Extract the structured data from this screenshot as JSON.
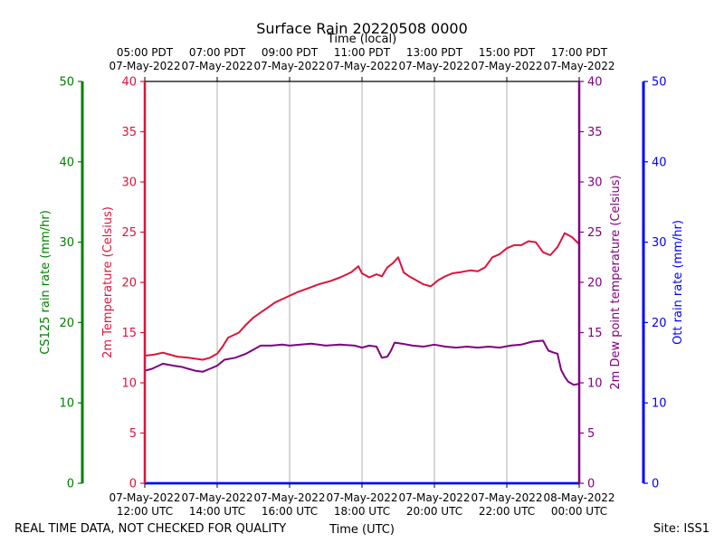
{
  "colors": {
    "temperature": "#dc143c",
    "dewpoint": "#800080",
    "cs125": "#008000",
    "ott": "#0000ff",
    "grid": "#b0b0b0",
    "text": "#000000"
  },
  "chart_data": {
    "type": "line",
    "title": "Surface Rain 20220508 0000",
    "xlabel": "Time (UTC)",
    "xlabel_top": "Time (local)",
    "footer_left": "REAL TIME DATA, NOT CHECKED FOR QUALITY",
    "footer_right": "Site: ISS1",
    "x_range_hours": [
      0,
      12
    ],
    "x_ticks_bottom": [
      {
        "hour": 0,
        "date": "07-May-2022",
        "time": "12:00 UTC"
      },
      {
        "hour": 2,
        "date": "07-May-2022",
        "time": "14:00 UTC"
      },
      {
        "hour": 4,
        "date": "07-May-2022",
        "time": "16:00 UTC"
      },
      {
        "hour": 6,
        "date": "07-May-2022",
        "time": "18:00 UTC"
      },
      {
        "hour": 8,
        "date": "07-May-2022",
        "time": "20:00 UTC"
      },
      {
        "hour": 10,
        "date": "07-May-2022",
        "time": "22:00 UTC"
      },
      {
        "hour": 12,
        "date": "08-May-2022",
        "time": "00:00 UTC"
      }
    ],
    "x_ticks_top": [
      {
        "hour": 0,
        "time": "05:00 PDT",
        "date": "07-May-2022"
      },
      {
        "hour": 2,
        "time": "07:00 PDT",
        "date": "07-May-2022"
      },
      {
        "hour": 4,
        "time": "09:00 PDT",
        "date": "07-May-2022"
      },
      {
        "hour": 6,
        "time": "11:00 PDT",
        "date": "07-May-2022"
      },
      {
        "hour": 8,
        "time": "13:00 PDT",
        "date": "07-May-2022"
      },
      {
        "hour": 10,
        "time": "15:00 PDT",
        "date": "07-May-2022"
      },
      {
        "hour": 12,
        "time": "17:00 PDT",
        "date": "07-May-2022"
      }
    ],
    "axes": {
      "temperature": {
        "label": "2m Temperature (Celsius)",
        "ylim": [
          0,
          40
        ],
        "ticks": [
          0,
          5,
          10,
          15,
          20,
          25,
          30,
          35,
          40
        ]
      },
      "dewpoint": {
        "label": "2m Dew point temperature (Celsius)",
        "ylim": [
          0,
          40
        ],
        "ticks": [
          0,
          5,
          10,
          15,
          20,
          25,
          30,
          35,
          40
        ]
      },
      "cs125": {
        "label": "CS125 rain rate (mm/hr)",
        "ylim": [
          0,
          50
        ],
        "ticks": [
          0,
          10,
          20,
          30,
          40,
          50
        ]
      },
      "ott": {
        "label": "Ott rain rate (mm/hr)",
        "ylim": [
          0,
          50
        ],
        "ticks": [
          0,
          10,
          20,
          30,
          40,
          50
        ]
      }
    },
    "series": [
      {
        "name": "2m Temperature",
        "axis": "temperature",
        "x": [
          0,
          0.25,
          0.5,
          0.7,
          0.9,
          1.2,
          1.4,
          1.6,
          1.8,
          2.0,
          2.15,
          2.3,
          2.6,
          2.8,
          3.0,
          3.2,
          3.4,
          3.6,
          3.9,
          4.2,
          4.5,
          4.8,
          5.1,
          5.4,
          5.7,
          5.9,
          6.0,
          6.2,
          6.4,
          6.55,
          6.7,
          6.85,
          7.0,
          7.15,
          7.3,
          7.5,
          7.7,
          7.9,
          8.1,
          8.3,
          8.5,
          8.7,
          9.0,
          9.2,
          9.4,
          9.6,
          9.8,
          10.0,
          10.2,
          10.4,
          10.6,
          10.8,
          11.0,
          11.2,
          11.4,
          11.6,
          11.8,
          12.0
        ],
        "values": [
          12.7,
          12.8,
          13.0,
          12.8,
          12.6,
          12.5,
          12.4,
          12.3,
          12.5,
          12.9,
          13.6,
          14.5,
          15.0,
          15.8,
          16.5,
          17.0,
          17.5,
          18.0,
          18.5,
          19.0,
          19.4,
          19.8,
          20.1,
          20.5,
          21.0,
          21.6,
          20.9,
          20.5,
          20.8,
          20.6,
          21.5,
          21.9,
          22.5,
          21.0,
          20.6,
          20.2,
          19.8,
          19.6,
          20.2,
          20.6,
          20.9,
          21.0,
          21.2,
          21.1,
          21.5,
          22.5,
          22.8,
          23.4,
          23.7,
          23.7,
          24.1,
          24.0,
          23.0,
          22.7,
          23.5,
          24.9,
          24.5,
          23.8
        ]
      },
      {
        "name": "2m Dew point temperature",
        "axis": "dewpoint",
        "x": [
          0,
          0.2,
          0.5,
          0.8,
          1.0,
          1.2,
          1.4,
          1.6,
          1.8,
          2.0,
          2.2,
          2.5,
          2.8,
          3.0,
          3.2,
          3.5,
          3.8,
          4.0,
          4.3,
          4.6,
          5.0,
          5.4,
          5.8,
          6.0,
          6.2,
          6.4,
          6.55,
          6.7,
          6.8,
          6.9,
          7.1,
          7.4,
          7.7,
          8.0,
          8.3,
          8.6,
          8.9,
          9.2,
          9.5,
          9.8,
          10.1,
          10.4,
          10.7,
          11.0,
          11.15,
          11.3,
          11.4,
          11.5,
          11.6,
          11.7,
          11.85,
          12.0
        ],
        "values": [
          11.2,
          11.4,
          11.9,
          11.7,
          11.6,
          11.4,
          11.2,
          11.1,
          11.4,
          11.7,
          12.3,
          12.5,
          12.9,
          13.3,
          13.7,
          13.7,
          13.8,
          13.7,
          13.8,
          13.9,
          13.7,
          13.8,
          13.7,
          13.5,
          13.7,
          13.6,
          12.5,
          12.6,
          13.2,
          14.0,
          13.9,
          13.7,
          13.6,
          13.8,
          13.6,
          13.5,
          13.6,
          13.5,
          13.6,
          13.5,
          13.7,
          13.8,
          14.1,
          14.2,
          13.2,
          13.0,
          12.9,
          11.3,
          10.6,
          10.1,
          9.8,
          9.9
        ]
      },
      {
        "name": "CS125 rain rate",
        "axis": "cs125",
        "x": [
          0,
          12
        ],
        "values": [
          0,
          0
        ]
      },
      {
        "name": "Ott rain rate",
        "axis": "ott",
        "x": [
          0,
          12
        ],
        "values": [
          0,
          0
        ]
      }
    ]
  }
}
